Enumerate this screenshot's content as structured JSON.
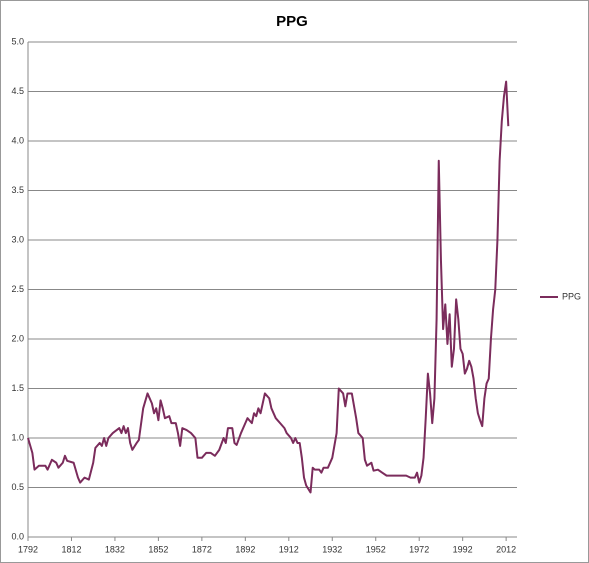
{
  "chart_data": {
    "type": "line",
    "title": "PPG",
    "x": [
      1792,
      1794,
      1795,
      1797,
      1800,
      1801,
      1803,
      1805,
      1806,
      1808,
      1809,
      1810,
      1813,
      1815,
      1816,
      1818,
      1820,
      1822,
      1823,
      1825,
      1826,
      1827,
      1828,
      1829,
      1831,
      1834,
      1835,
      1836,
      1837,
      1838,
      1839,
      1840,
      1842,
      1843,
      1845,
      1847,
      1849,
      1850,
      1851,
      1852,
      1853,
      1854,
      1855,
      1857,
      1858,
      1860,
      1861,
      1862,
      1863,
      1865,
      1867,
      1869,
      1870,
      1872,
      1874,
      1876,
      1878,
      1880,
      1882,
      1883,
      1884,
      1886,
      1887,
      1888,
      1890,
      1892,
      1893,
      1895,
      1896,
      1897,
      1898,
      1899,
      1900,
      1901,
      1903,
      1904,
      1906,
      1908,
      1910,
      1911,
      1913,
      1914,
      1915,
      1916,
      1917,
      1918,
      1919,
      1920,
      1922,
      1923,
      1924,
      1926,
      1927,
      1928,
      1930,
      1932,
      1934,
      1935,
      1937,
      1938,
      1939,
      1941,
      1943,
      1944,
      1946,
      1947,
      1948,
      1950,
      1951,
      1953,
      1955,
      1957,
      1960,
      1963,
      1966,
      1968,
      1970,
      1971,
      1972,
      1973,
      1974,
      1975,
      1976,
      1977,
      1978,
      1979,
      1980,
      1981,
      1982,
      1983,
      1984,
      1985,
      1986,
      1987,
      1988,
      1989,
      1990,
      1991,
      1992,
      1993,
      1994,
      1995,
      1996,
      1997,
      1998,
      1999,
      2000,
      2001,
      2002,
      2003,
      2004,
      2005,
      2006,
      2007,
      2008,
      2009,
      2010,
      2011,
      2012,
      2013
    ],
    "series": [
      {
        "name": "PPG",
        "color": "#7b2c5c",
        "values": [
          1.0,
          0.85,
          0.68,
          0.72,
          0.72,
          0.68,
          0.78,
          0.75,
          0.7,
          0.75,
          0.82,
          0.77,
          0.75,
          0.6,
          0.55,
          0.6,
          0.58,
          0.75,
          0.9,
          0.95,
          0.92,
          1.0,
          0.92,
          1.0,
          1.05,
          1.1,
          1.05,
          1.12,
          1.05,
          1.1,
          0.95,
          0.88,
          0.95,
          0.98,
          1.3,
          1.45,
          1.35,
          1.25,
          1.3,
          1.18,
          1.38,
          1.3,
          1.2,
          1.22,
          1.15,
          1.15,
          1.05,
          0.92,
          1.1,
          1.08,
          1.05,
          1.0,
          0.8,
          0.8,
          0.85,
          0.85,
          0.82,
          0.88,
          1.0,
          0.95,
          1.1,
          1.1,
          0.95,
          0.93,
          1.05,
          1.15,
          1.2,
          1.15,
          1.25,
          1.22,
          1.3,
          1.25,
          1.35,
          1.45,
          1.4,
          1.3,
          1.2,
          1.15,
          1.1,
          1.05,
          1.0,
          0.95,
          1.0,
          0.95,
          0.95,
          0.8,
          0.6,
          0.52,
          0.45,
          0.7,
          0.68,
          0.68,
          0.65,
          0.7,
          0.7,
          0.8,
          1.05,
          1.5,
          1.45,
          1.32,
          1.45,
          1.45,
          1.2,
          1.05,
          1.0,
          0.78,
          0.72,
          0.75,
          0.67,
          0.68,
          0.65,
          0.62,
          0.62,
          0.62,
          0.62,
          0.6,
          0.6,
          0.65,
          0.55,
          0.62,
          0.8,
          1.2,
          1.65,
          1.45,
          1.15,
          1.4,
          2.2,
          3.8,
          2.8,
          2.1,
          2.35,
          1.95,
          2.25,
          1.72,
          1.9,
          2.4,
          2.2,
          1.9,
          1.85,
          1.65,
          1.7,
          1.78,
          1.72,
          1.6,
          1.4,
          1.25,
          1.18,
          1.12,
          1.4,
          1.55,
          1.6,
          2.0,
          2.3,
          2.5,
          3.0,
          3.8,
          4.2,
          4.45,
          4.6,
          4.15
        ]
      }
    ],
    "xlim": [
      1792,
      2017
    ],
    "xticks": [
      1792,
      1812,
      1832,
      1852,
      1872,
      1892,
      1912,
      1932,
      1952,
      1972,
      1992,
      2012
    ],
    "ylim": [
      0,
      5
    ],
    "yticks": [
      {
        "value": 0,
        "label": "0.0"
      },
      0.5,
      {
        "value": 1,
        "label": "1.0"
      },
      1.5,
      {
        "value": 2,
        "label": "2.0"
      },
      2.5,
      {
        "value": 3,
        "label": "3.0"
      },
      3.5,
      {
        "value": 4,
        "label": "4.0"
      },
      4.5,
      {
        "value": 5,
        "label": "5.0"
      }
    ],
    "grid": true,
    "legend": "right"
  }
}
